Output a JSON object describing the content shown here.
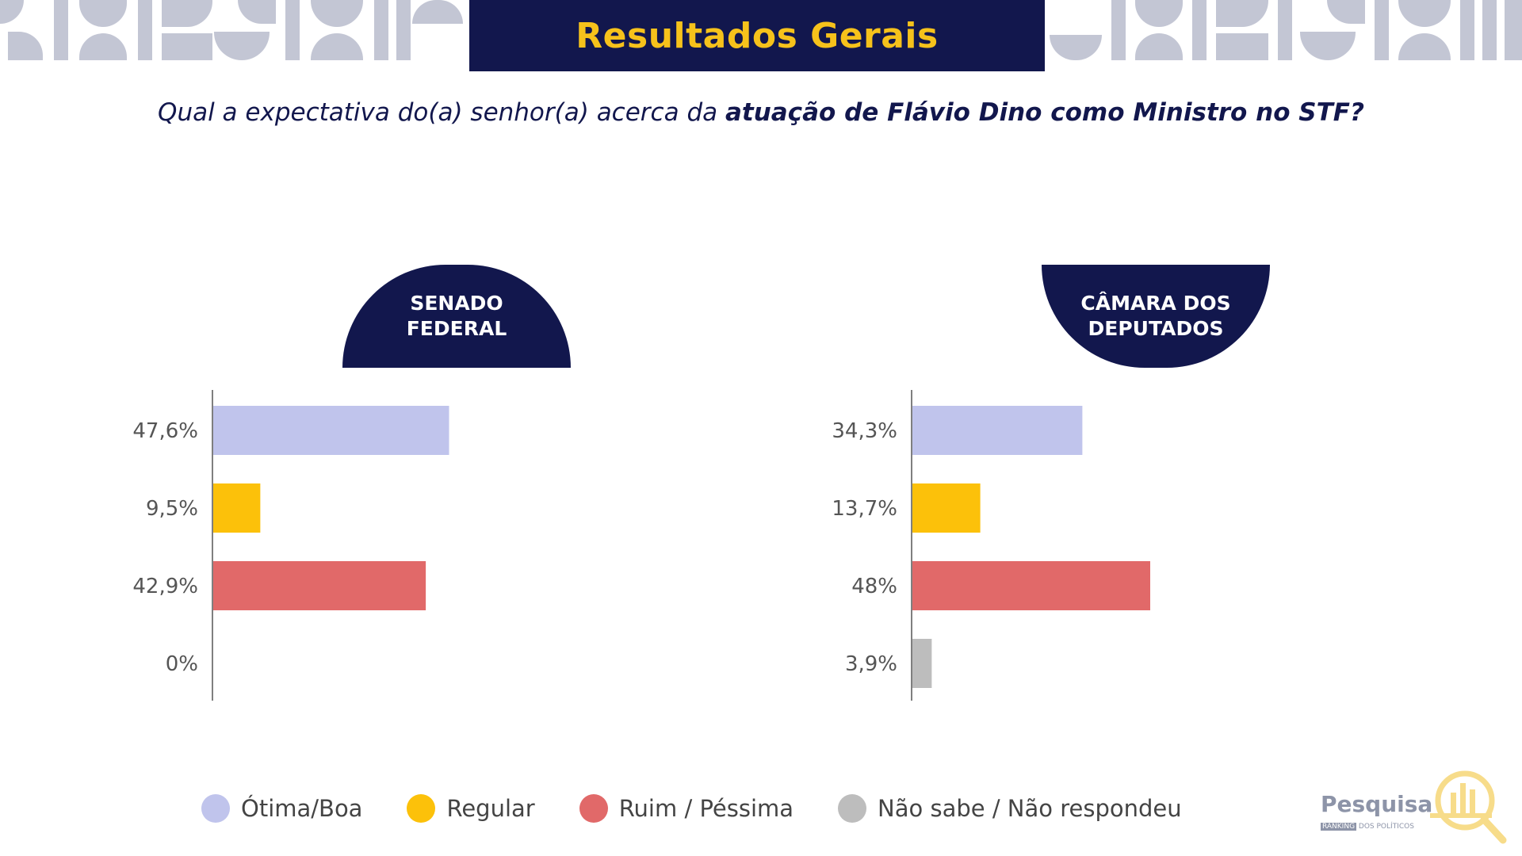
{
  "header": {
    "title": "Resultados Gerais",
    "question_regular": "Qual a expectativa do(a) senhor(a) acerca da ",
    "question_bold": "atuação de Flávio Dino como Ministro no STF?"
  },
  "colors": {
    "navy": "#12174d",
    "gold": "#f6c21b",
    "pattern": "#c3c6d4"
  },
  "chart_data": [
    {
      "type": "bar",
      "orientation": "horizontal",
      "title": "SENADO FEDERAL",
      "title_lines": [
        "SENADO",
        "FEDERAL"
      ],
      "categories": [
        "Ótima/Boa",
        "Regular",
        "Ruim / Péssima",
        "Não sabe / Não respondeu"
      ],
      "values": [
        47.6,
        9.5,
        42.9,
        0
      ],
      "labels": [
        "47,6%",
        "9,5%",
        "42,9%",
        "0%"
      ],
      "colors": [
        "#c0c4ec",
        "#fcc10a",
        "#e16969",
        "#bdbdbd"
      ],
      "xlim": [
        0,
        100
      ],
      "grid": false
    },
    {
      "type": "bar",
      "orientation": "horizontal",
      "title": "CÂMARA DOS DEPUTADOS",
      "title_lines": [
        "CÂMARA DOS",
        "DEPUTADOS"
      ],
      "categories": [
        "Ótima/Boa",
        "Regular",
        "Ruim / Péssima",
        "Não sabe / Não respondeu"
      ],
      "values": [
        34.3,
        13.7,
        48,
        3.9
      ],
      "labels": [
        "34,3%",
        "13,7%",
        "48%",
        "3,9%"
      ],
      "colors": [
        "#c0c4ec",
        "#fcc10a",
        "#e16969",
        "#bdbdbd"
      ],
      "xlim": [
        0,
        100
      ],
      "grid": false
    }
  ],
  "legend": {
    "placement": "bottom",
    "items": [
      {
        "label": "Ótima/Boa",
        "color": "#c0c4ec"
      },
      {
        "label": "Regular",
        "color": "#fcc10a"
      },
      {
        "label": "Ruim / Péssima",
        "color": "#e16969"
      },
      {
        "label": "Não sabe / Não respondeu",
        "color": "#bdbdbd"
      }
    ]
  },
  "logo": {
    "name": "Pesquisa",
    "sub_box": "RANKING",
    "sub_text": "DOS POLÍTICOS",
    "icon": "magnifier-bars-icon"
  }
}
